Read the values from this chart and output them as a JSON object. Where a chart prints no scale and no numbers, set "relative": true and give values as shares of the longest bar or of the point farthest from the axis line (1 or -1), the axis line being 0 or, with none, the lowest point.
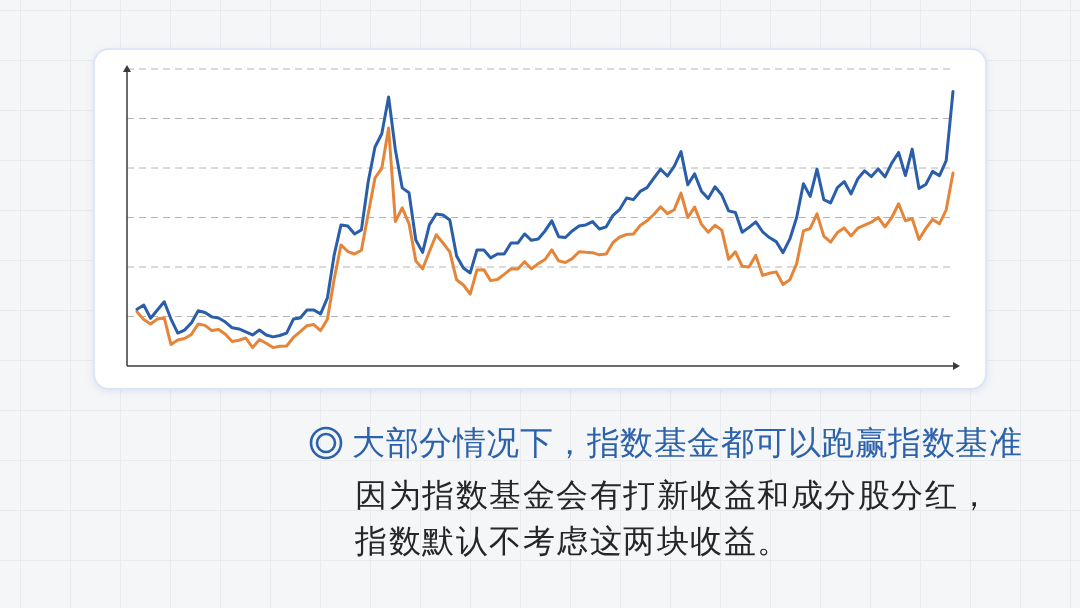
{
  "chart_data": {
    "type": "line",
    "title": "大部分情况下，指数基金都可以跑赢指数基准",
    "annotations": [
      "因为指数基金会有打新收益和成分股分红，指数默认不考虑这两块收益。"
    ],
    "categories": [
      null,
      null,
      null,
      null,
      null,
      null,
      null,
      null,
      null,
      null,
      null,
      null,
      null,
      null,
      null,
      null,
      null,
      null,
      null,
      null,
      null,
      null,
      null,
      null,
      null,
      null,
      null,
      null,
      null,
      null,
      null,
      null,
      null,
      null,
      null,
      null,
      null,
      null,
      null,
      null,
      null,
      null,
      null,
      null,
      null,
      null,
      null,
      null,
      null,
      null,
      null,
      null,
      null,
      null,
      null,
      null,
      null,
      null,
      null,
      null,
      null,
      null,
      null,
      null,
      null,
      null,
      null,
      null,
      null,
      null,
      null,
      null,
      null,
      null,
      null,
      null,
      null,
      null,
      null,
      null,
      null,
      null,
      null,
      null,
      null,
      null,
      null,
      null,
      null,
      null,
      null,
      null,
      null,
      null,
      null,
      null,
      null,
      null,
      null,
      null,
      null,
      null,
      null,
      null,
      null,
      null,
      null,
      null,
      null,
      null,
      null,
      null,
      null,
      null,
      null,
      null,
      null,
      null,
      null,
      null,
      null
    ],
    "relative": true,
    "series": [
      {
        "color": "#e5853a",
        "values": [
          0.198,
          0.169,
          0.153,
          0.171,
          0.176,
          0.078,
          0.095,
          0.1,
          0.115,
          0.153,
          0.148,
          0.129,
          0.133,
          0.116,
          0.089,
          0.094,
          0.102,
          0.067,
          0.096,
          0.083,
          0.067,
          0.072,
          0.073,
          0.104,
          0.125,
          0.147,
          0.151,
          0.129,
          0.17,
          0.317,
          0.441,
          0.417,
          0.408,
          0.422,
          0.554,
          0.685,
          0.72,
          0.867,
          0.526,
          0.576,
          0.519,
          0.383,
          0.354,
          0.417,
          0.478,
          0.448,
          0.416,
          0.314,
          0.295,
          0.262,
          0.35,
          0.351,
          0.311,
          0.315,
          0.334,
          0.354,
          0.353,
          0.38,
          0.354,
          0.373,
          0.388,
          0.423,
          0.383,
          0.377,
          0.391,
          0.416,
          0.414,
          0.413,
          0.405,
          0.408,
          0.45,
          0.47,
          0.479,
          0.481,
          0.512,
          0.529,
          0.552,
          0.58,
          0.555,
          0.569,
          0.63,
          0.541,
          0.579,
          0.517,
          0.487,
          0.513,
          0.495,
          0.389,
          0.416,
          0.363,
          0.361,
          0.403,
          0.33,
          0.338,
          0.343,
          0.297,
          0.314,
          0.372,
          0.492,
          0.501,
          0.554,
          0.473,
          0.451,
          0.486,
          0.503,
          0.474,
          0.502,
          0.513,
          0.524,
          0.541,
          0.507,
          0.541,
          0.591,
          0.529,
          0.537,
          0.461,
          0.501,
          0.534,
          0.518,
          0.569,
          0.703
        ]
      },
      {
        "color": "#2a5ea8",
        "values": [
          0.207,
          0.222,
          0.174,
          0.204,
          0.234,
          0.171,
          0.12,
          0.131,
          0.157,
          0.201,
          0.195,
          0.179,
          0.175,
          0.16,
          0.139,
          0.135,
          0.124,
          0.113,
          0.131,
          0.113,
          0.106,
          0.111,
          0.12,
          0.171,
          0.175,
          0.204,
          0.204,
          0.19,
          0.248,
          0.405,
          0.514,
          0.51,
          0.481,
          0.496,
          0.671,
          0.798,
          0.846,
          0.98,
          0.787,
          0.649,
          0.631,
          0.459,
          0.414,
          0.514,
          0.554,
          0.55,
          0.532,
          0.401,
          0.357,
          0.339,
          0.423,
          0.423,
          0.394,
          0.408,
          0.408,
          0.448,
          0.448,
          0.481,
          0.458,
          0.463,
          0.492,
          0.529,
          0.471,
          0.468,
          0.492,
          0.51,
          0.514,
          0.526,
          0.499,
          0.507,
          0.549,
          0.571,
          0.612,
          0.606,
          0.636,
          0.65,
          0.684,
          0.717,
          0.692,
          0.727,
          0.781,
          0.66,
          0.7,
          0.637,
          0.61,
          0.653,
          0.623,
          0.565,
          0.559,
          0.487,
          0.505,
          0.525,
          0.489,
          0.468,
          0.453,
          0.413,
          0.462,
          0.54,
          0.664,
          0.618,
          0.717,
          0.606,
          0.594,
          0.65,
          0.672,
          0.627,
          0.682,
          0.711,
          0.69,
          0.718,
          0.689,
          0.739,
          0.778,
          0.694,
          0.79,
          0.647,
          0.661,
          0.709,
          0.693,
          0.748,
          1
        ]
      }
    ],
    "grid": "y",
    "marker": "none",
    "line_style": "solid"
  }
}
